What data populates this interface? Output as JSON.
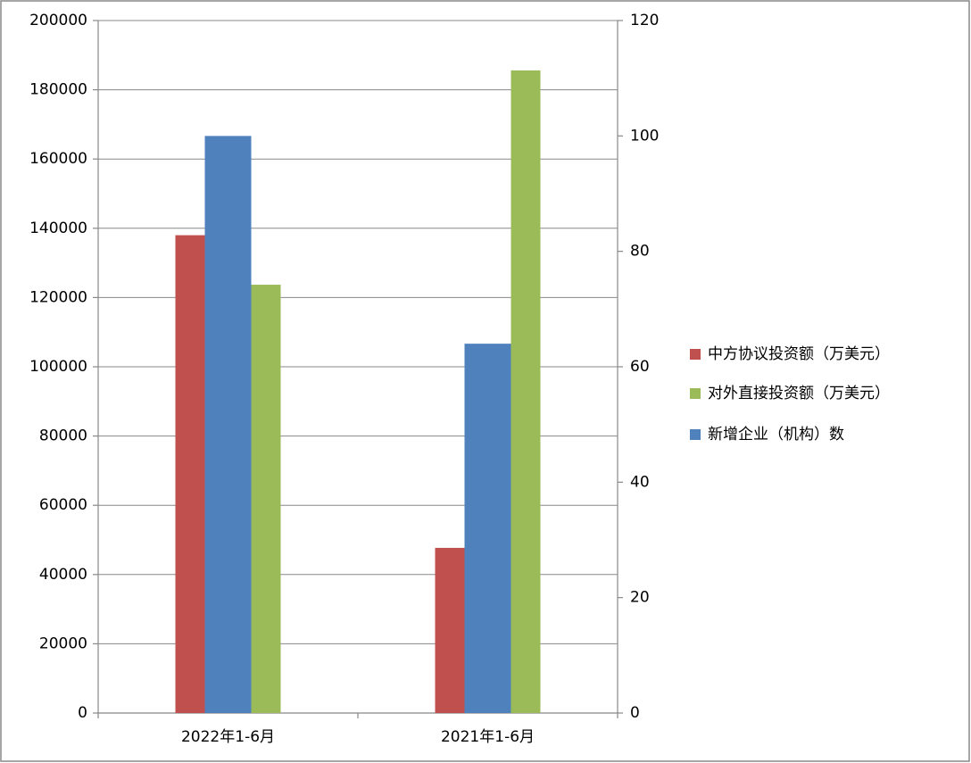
{
  "chart_data": {
    "type": "bar",
    "categories": [
      "2022年1-6月",
      "2021年1-6月"
    ],
    "series": [
      {
        "name": "中方协议投资额（万美元）",
        "color": "#c0504d",
        "values": [
          138000,
          47700
        ]
      },
      {
        "name": "对外直接投资额（万美元）",
        "color": "#9bbb59",
        "values": [
          123700,
          185600
        ]
      },
      {
        "name": "新增企业（机构）数",
        "color": "#4f81bd",
        "values": [
          100,
          64
        ],
        "axis": "y2"
      }
    ],
    "ylim": [
      0,
      200000
    ],
    "yticks": [
      0,
      20000,
      40000,
      60000,
      80000,
      100000,
      120000,
      140000,
      160000,
      180000,
      200000
    ],
    "y2lim": [
      0,
      120
    ],
    "y2ticks": [
      0,
      20,
      40,
      60,
      80,
      100,
      120
    ],
    "grid": true,
    "legend": "right"
  }
}
